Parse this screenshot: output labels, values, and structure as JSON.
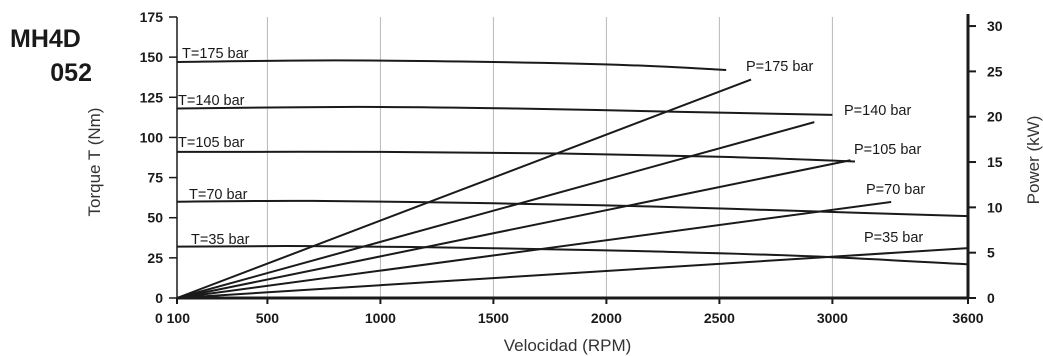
{
  "title": {
    "line1": "MH4D",
    "line2": "052"
  },
  "chart_data": {
    "type": "line",
    "xlabel": "Velocidad  (RPM)",
    "ylabel": "Torque T (Nm)",
    "y2label": "Power (kW)",
    "xlim": [
      100,
      3600
    ],
    "ylim": [
      0,
      175
    ],
    "y2lim": [
      0,
      31
    ],
    "xticks": [
      {
        "value": 100,
        "label": "0 100"
      },
      {
        "value": 500,
        "label": "500"
      },
      {
        "value": 1000,
        "label": "1000"
      },
      {
        "value": 1500,
        "label": "1500"
      },
      {
        "value": 2000,
        "label": "2000"
      },
      {
        "value": 2500,
        "label": "2500"
      },
      {
        "value": 3000,
        "label": "3000"
      },
      {
        "value": 3600,
        "label": "3600"
      }
    ],
    "yticks": [
      0,
      25,
      50,
      75,
      100,
      125,
      150,
      175
    ],
    "y2ticks": [
      0,
      5,
      10,
      15,
      20,
      25,
      30
    ],
    "grid": "vertical",
    "torque_series": [
      {
        "name": "T=175 bar",
        "x": [
          100,
          800,
          1500,
          2100,
          2530
        ],
        "y": [
          147,
          148,
          147,
          145,
          142
        ]
      },
      {
        "name": "T=140 bar",
        "x": [
          100,
          900,
          1600,
          2300,
          3000
        ],
        "y": [
          118,
          119,
          118,
          116,
          114
        ]
      },
      {
        "name": "T=105 bar",
        "x": [
          100,
          1000,
          1800,
          2500,
          3100
        ],
        "y": [
          91,
          91,
          90,
          88,
          85
        ]
      },
      {
        "name": "T=70 bar",
        "x": [
          100,
          700,
          1500,
          2200,
          2900,
          3600
        ],
        "y": [
          60,
          60.5,
          59,
          57,
          54,
          51
        ]
      },
      {
        "name": "T=35 bar",
        "x": [
          100,
          700,
          1500,
          2200,
          2900,
          3600
        ],
        "y": [
          32,
          32.3,
          31,
          29,
          26,
          21
        ]
      }
    ],
    "power_series": [
      {
        "name": "P=175 bar",
        "x": [
          100,
          2640
        ],
        "y": [
          0,
          24.1
        ]
      },
      {
        "name": "P=140 bar",
        "x": [
          100,
          2920
        ],
        "y": [
          0,
          19.4
        ]
      },
      {
        "name": "P=105 bar",
        "x": [
          100,
          3080
        ],
        "y": [
          0,
          15.2
        ]
      },
      {
        "name": "P=70 bar",
        "x": [
          100,
          3260
        ],
        "y": [
          0,
          10.6
        ]
      },
      {
        "name": "P=35 bar",
        "x": [
          100,
          3600
        ],
        "y": [
          0,
          5.5
        ]
      }
    ],
    "torque_label_text": [
      "T=175 bar",
      "T=140 bar",
      "T=105 bar",
      "T=70 bar",
      "T=35 bar"
    ],
    "power_label_text": [
      "P=175 bar",
      "P=140 bar",
      "P=105 bar",
      "P=70 bar",
      "P=35 bar"
    ]
  }
}
